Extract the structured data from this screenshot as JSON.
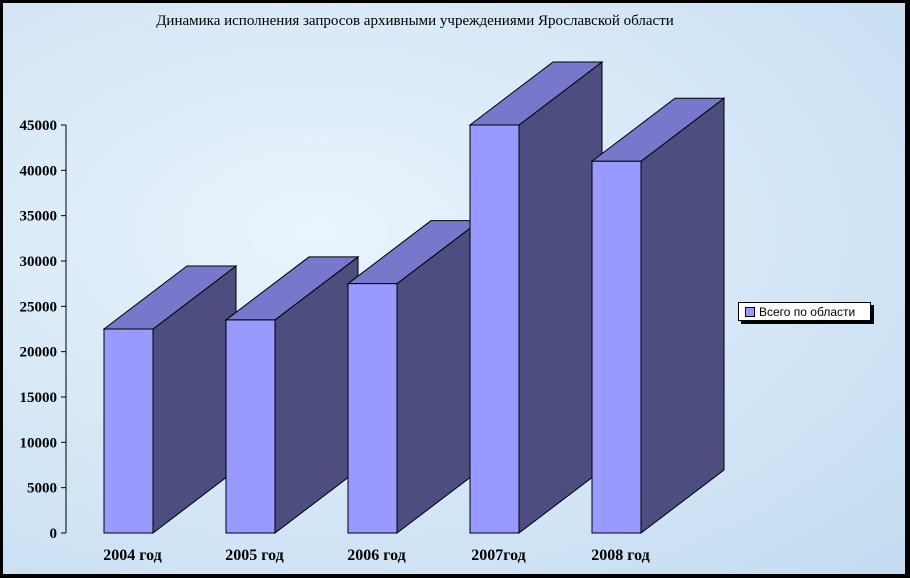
{
  "chart_data": {
    "type": "bar",
    "title": "Динамика исполнения запросов архивными учреждениями Ярославской области",
    "categories": [
      "2004 год",
      "2005 год",
      "2006 год",
      "2007год",
      "2008 год"
    ],
    "series": [
      {
        "name": "Всего по области",
        "values": [
          22500,
          23500,
          27500,
          45000,
          41000
        ],
        "color": "#9999ff",
        "top_color": "#7777cc",
        "side_color": "#4d4d80"
      }
    ],
    "y_ticks": [
      0,
      5000,
      10000,
      15000,
      20000,
      25000,
      30000,
      35000,
      40000,
      45000
    ],
    "ylim": [
      0,
      45000
    ],
    "xlabel": "",
    "ylabel": "",
    "grid": false,
    "legend_position": "right",
    "three_d": true
  }
}
